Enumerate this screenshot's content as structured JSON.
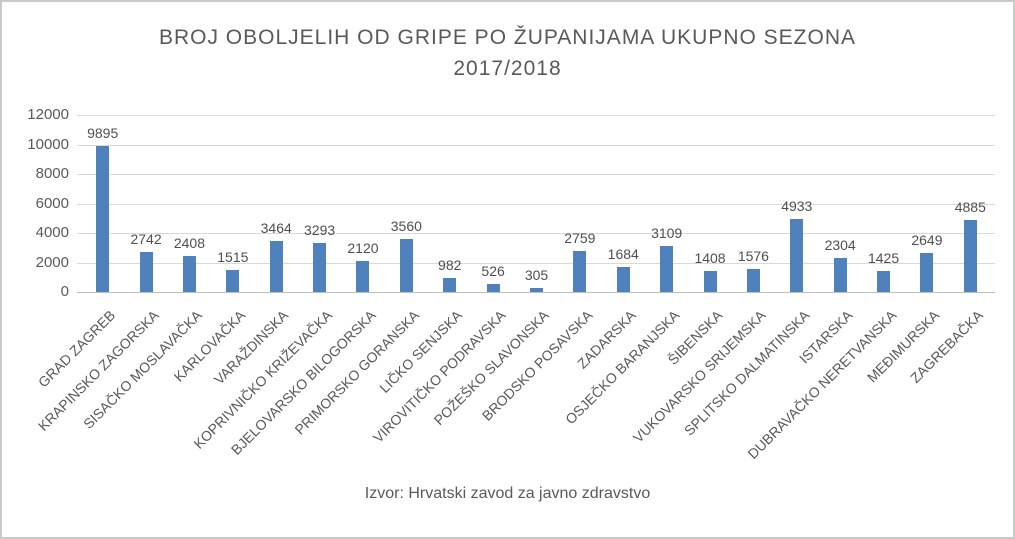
{
  "chart_data": {
    "type": "bar",
    "title": "BROJ OBOLJELIH OD GRIPE PO ŽUPANIJAMA UKUPNO SEZONA 2017/2018",
    "title_lines": [
      "BROJ OBOLJELIH OD GRIPE PO ŽUPANIJAMA UKUPNO SEZONA",
      "2017/2018"
    ],
    "source_note": "Izvor: Hrvatski zavod za javno zdravstvo",
    "categories": [
      "GRAD ZAGREB",
      "KRAPINSKO ZAGORSKA",
      "SISAČKO MOSLAVAČKA",
      "KARLOVAČKA",
      "VARAŽDINSKA",
      "KOPRIVNIČKO KRIŽEVAČKA",
      "BJELOVARSKO BILOGORSKA",
      "PRIMORSKO GORANSKA",
      "LIČKO SENJSKA",
      "VIROVITIČKO PODRAVSKA",
      "POŽEŠKO SLAVONSKA",
      "BRODSKO POSAVSKA",
      "ZADARSKA",
      "OSJEČKO BARANJSKA",
      "ŠIBENSKA",
      "VUKOVARSKO SRIJEMSKA",
      "SPLITSKO DALMATINSKA",
      "ISTARSKA",
      "DUBRAVAČKO NERETVANSKA",
      "MEĐIMURSKA",
      "ZAGREBAČKA"
    ],
    "values": [
      9895,
      2742,
      2408,
      1515,
      3464,
      3293,
      2120,
      3560,
      982,
      526,
      305,
      2759,
      1684,
      3109,
      1408,
      1576,
      4933,
      2304,
      1425,
      2649,
      4885
    ],
    "y_ticks": [
      0,
      2000,
      4000,
      6000,
      8000,
      10000,
      12000
    ],
    "ylim": [
      0,
      12000
    ],
    "xlabel": "",
    "ylabel": "",
    "legend": "none",
    "grid": true,
    "data_labels": true,
    "bar_color": "#4F81BD",
    "gridline_color": "#D9D9D9",
    "axis_line_color": "#BFBFBF",
    "text_color": "#595959"
  }
}
